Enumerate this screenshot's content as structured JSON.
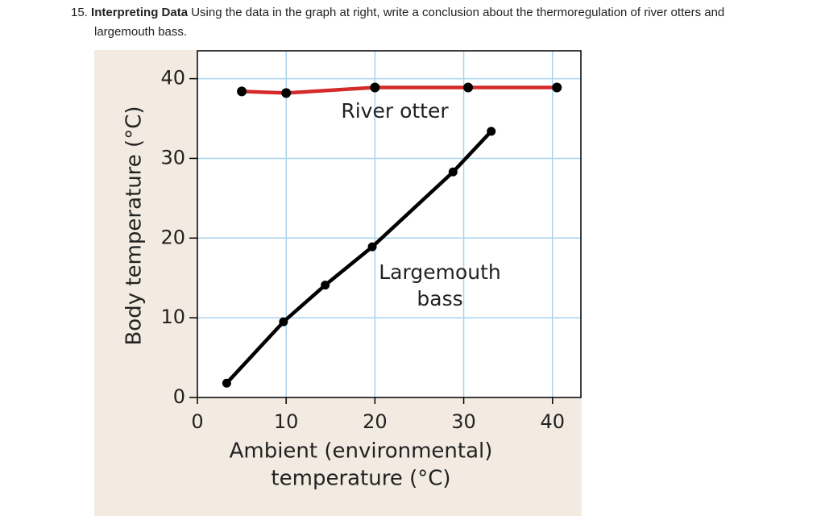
{
  "question": {
    "number": "15.",
    "heading": "Interpreting Data",
    "text": "Using the data in the graph at right, write a conclusion about the thermoregulation of river otters and largemouth bass."
  },
  "chart_data": {
    "type": "line",
    "xlabel": [
      "Ambient (environmental)",
      "temperature (°C)"
    ],
    "ylabel": "Body temperature (°C)",
    "xlim": [
      0,
      43.2
    ],
    "ylim": [
      0,
      43.5
    ],
    "xticks": [
      0,
      10,
      20,
      30,
      40
    ],
    "yticks": [
      0,
      10,
      20,
      30,
      40
    ],
    "grid": true,
    "grid_color": "#a9d3ef",
    "marker_color": "#000000",
    "series": [
      {
        "name": "River otter",
        "color": "#d42a2a",
        "x": [
          5,
          10,
          20,
          30.5,
          40.5
        ],
        "values": [
          38.4,
          38.2,
          38.9,
          38.9,
          38.9
        ]
      },
      {
        "name": "Largemouth bass",
        "color": "#000000",
        "x": [
          3.3,
          9.7,
          14.4,
          19.7,
          28.8,
          33.1
        ],
        "values": [
          1.8,
          9.5,
          14.1,
          18.9,
          28.3,
          33.4
        ]
      }
    ],
    "annotations": [
      [
        "River otter"
      ],
      [
        "Largemouth",
        "bass"
      ]
    ]
  }
}
